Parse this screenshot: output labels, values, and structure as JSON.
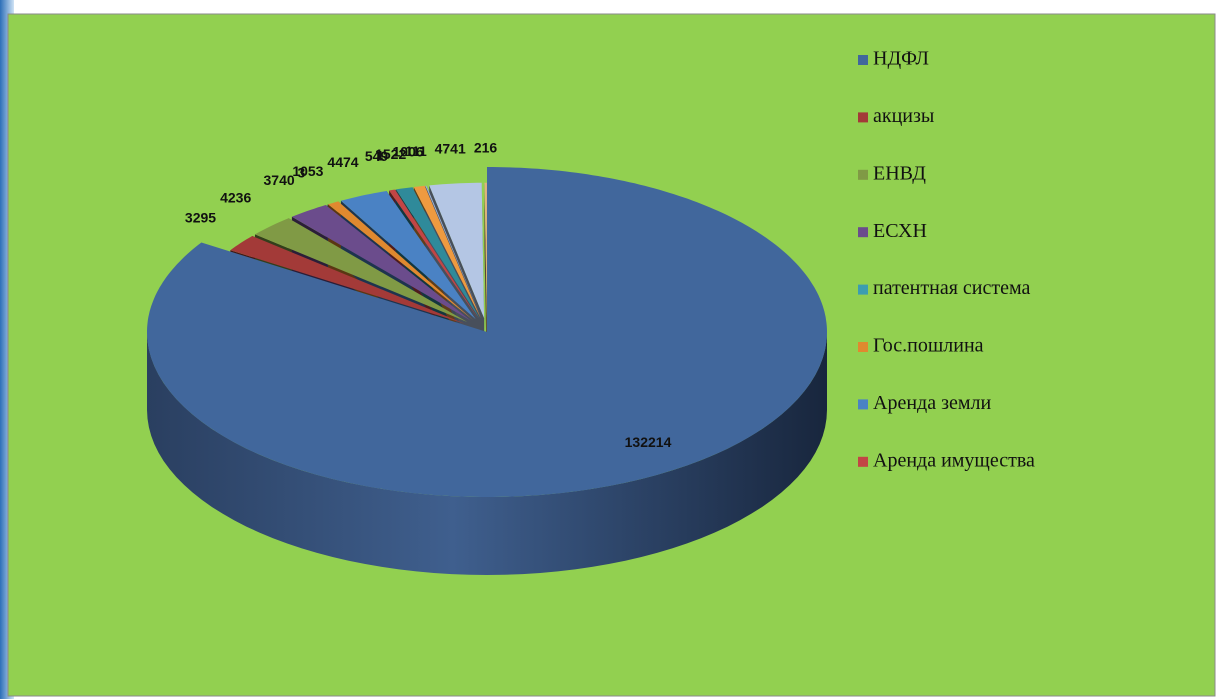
{
  "chart_data": {
    "type": "pie",
    "three_d": true,
    "legend": "right",
    "categories": [
      "НДФЛ",
      "акцизы",
      "ЕНВД",
      "ЕСХН",
      "патентная система",
      "Гос.пошлина",
      "Аренда земли",
      "Аренда имущества",
      null,
      null,
      null,
      null,
      null,
      null
    ],
    "values": [
      132214,
      3295,
      4236,
      3740,
      3,
      1053,
      4474,
      549,
      1,
      1522,
      1006,
      111,
      4741,
      216
    ],
    "colors": [
      "#41679c",
      "#a33a38",
      "#809a45",
      "#6b4c8c",
      "#3c9db0",
      "#e0892f",
      "#4a82c4",
      "#c24545",
      "#7f66a8",
      "#2f8a9a",
      "#ee9a40",
      "#9cb4d8",
      "#b4c6e4",
      "#e0b080"
    ]
  }
}
